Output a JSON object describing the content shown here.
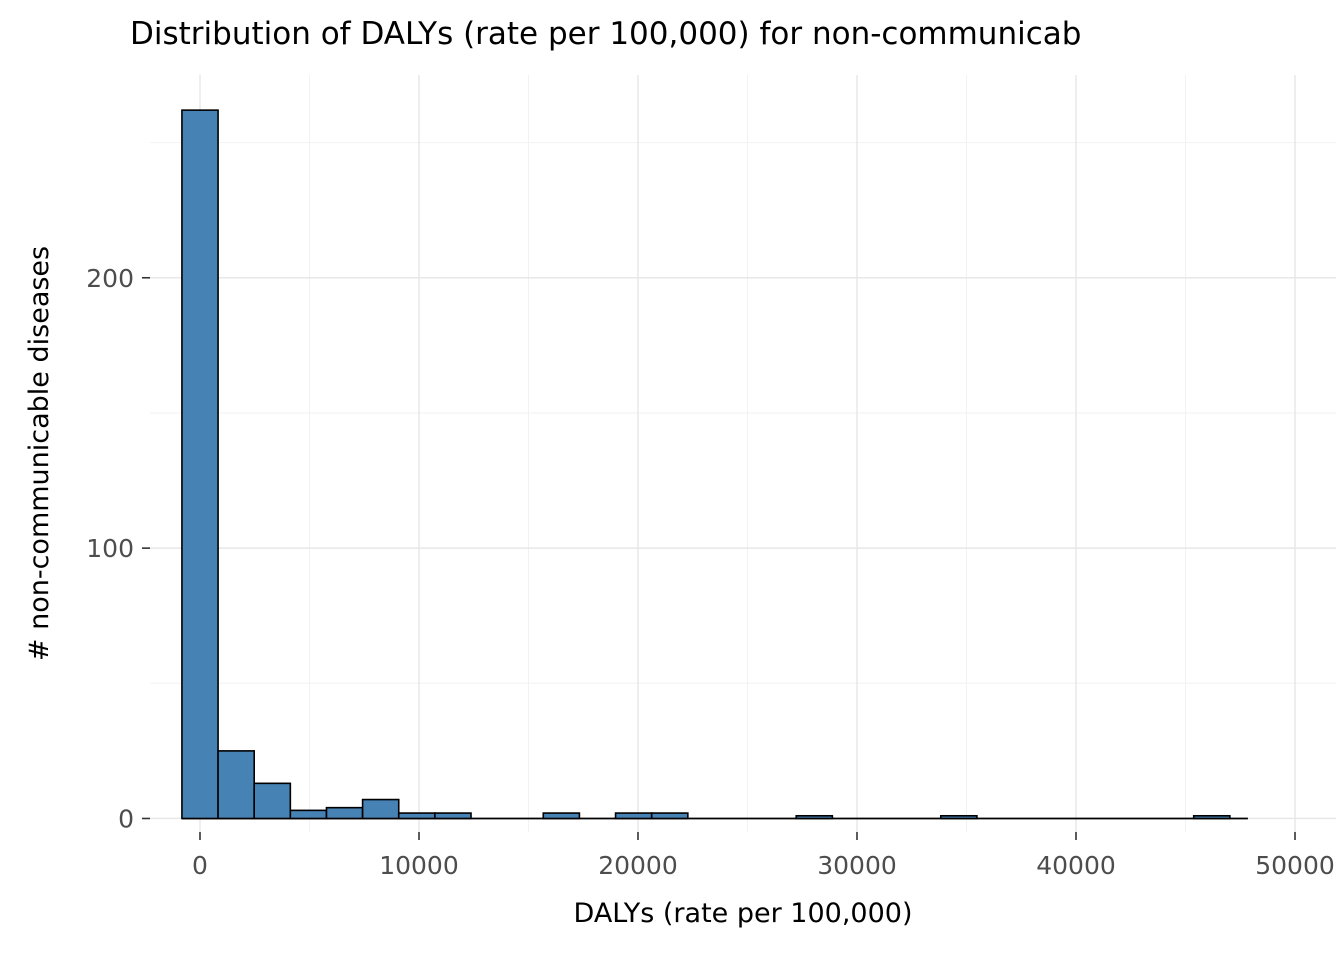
{
  "chart_data": {
    "type": "bar",
    "subtype": "histogram",
    "title": "Distribution of DALYs (rate per 100,000) for non-communicab",
    "xlabel": "DALYs (rate per 100,000)",
    "ylabel": "# non-communicable diseases",
    "binwidth": 1650,
    "bars": [
      {
        "center": 0,
        "count": 262
      },
      {
        "center": 1650,
        "count": 25
      },
      {
        "center": 3300,
        "count": 13
      },
      {
        "center": 4950,
        "count": 3
      },
      {
        "center": 6600,
        "count": 4
      },
      {
        "center": 8250,
        "count": 7
      },
      {
        "center": 9900,
        "count": 2
      },
      {
        "center": 11550,
        "count": 2
      },
      {
        "center": 16500,
        "count": 2
      },
      {
        "center": 19800,
        "count": 2
      },
      {
        "center": 21450,
        "count": 2
      },
      {
        "center": 28050,
        "count": 1
      },
      {
        "center": 34650,
        "count": 1
      },
      {
        "center": 46200,
        "count": 1
      }
    ],
    "baseline_extent": [
      -825,
      47850
    ],
    "x_ticks": [
      0,
      10000,
      20000,
      30000,
      40000,
      50000
    ],
    "x_tick_labels": [
      "0",
      "10000",
      "20000",
      "30000",
      "40000",
      "50000"
    ],
    "x_minor_ticks": [
      -5000,
      5000,
      15000,
      25000,
      35000,
      45000
    ],
    "y_ticks": [
      0,
      100,
      200
    ],
    "y_tick_labels": [
      "0",
      "100",
      "200"
    ],
    "y_minor_ticks": [
      50,
      150,
      250
    ],
    "xlim": [
      -2283,
      51872
    ],
    "ylim": [
      -5,
      275
    ],
    "grid": true,
    "legend": "none",
    "colors": {
      "bar_fill": "#4682B4",
      "bar_stroke": "#000000",
      "grid_major": "#E6E6E6",
      "grid_minor": "#F2F2F2",
      "tick_mark": "#333333",
      "tick_label": "#4D4D4D",
      "title": "#000000",
      "axis_label": "#000000",
      "background": "#FFFFFF"
    }
  }
}
